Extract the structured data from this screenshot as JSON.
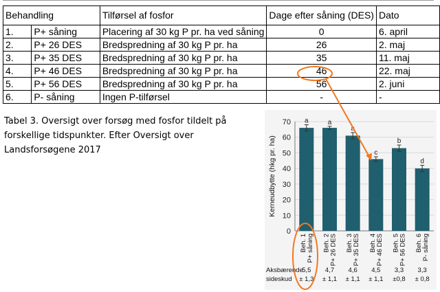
{
  "table": {
    "headers": [
      "Behandling",
      "",
      "Tilførsel af fosfor",
      "Dage efter såning (DES)",
      "Dato"
    ],
    "rows": [
      [
        "1.",
        "P+ såning",
        "Placering af 30 kg P pr. ha ved såning",
        "0",
        "6. april"
      ],
      [
        "2.",
        "P+ 26 DES",
        "Bredspredning af 30 kg P pr. ha",
        "26",
        "2. maj"
      ],
      [
        "3.",
        "P+ 35 DES",
        "Bredspredning af 30 kg P pr. ha",
        "35",
        "11. maj"
      ],
      [
        "4.",
        "P+ 46 DES",
        "Bredspredning af 30 kg P pr. ha",
        "46",
        "22. maj"
      ],
      [
        "5.",
        "P+ 56 DES",
        "Bredspredning af 30 kg P pr. ha",
        "56",
        "2. juni"
      ],
      [
        "6.",
        "P- såning",
        "Ingen P-tilførsel",
        "-",
        "-"
      ]
    ]
  },
  "caption": "Tabel 3. Oversigt over forsøg med fosfor tildelt på forskellige tidspunkter. Efter Oversigt over Landsforsøgene 2017",
  "colors": {
    "bar": "#1f5f6e",
    "highlight": "#f07820",
    "grid": "#d8d8d8",
    "chart_bg": "#f4f4f4"
  },
  "chart_data": {
    "type": "bar",
    "ylabel": "Kerneudbytte (hkg pr. ha)",
    "ylim": [
      0,
      70
    ],
    "yticks": [
      0,
      10,
      20,
      30,
      40,
      50,
      60,
      70
    ],
    "grid": true,
    "categories": [
      {
        "line1": "Beh. 1",
        "line2": "P+ såning"
      },
      {
        "line1": "Beh. 2",
        "line2": "P+ 26 DES"
      },
      {
        "line1": "Beh. 3",
        "line2": "P+ 35 DES"
      },
      {
        "line1": "Beh. 4",
        "line2": "P+ 46 DES"
      },
      {
        "line1": "Beh. 5",
        "line2": "P+ 56 DES"
      },
      {
        "line1": "Beh. 6",
        "line2": "P- såning"
      }
    ],
    "values": [
      66,
      66,
      61,
      46,
      53,
      40
    ],
    "errors": [
      2,
      1,
      2,
      1.5,
      2,
      2
    ],
    "letters": [
      "a",
      "a",
      "a",
      "c",
      "b",
      "d"
    ],
    "side_shoots_label": [
      "Aksbærende",
      "sideskud"
    ],
    "side_shoots": [
      {
        "mean": "5,5",
        "sd": "± 1,3"
      },
      {
        "mean": "4,7",
        "sd": "± 1,1"
      },
      {
        "mean": "4,6",
        "sd": "± 1,1"
      },
      {
        "mean": "4,5",
        "sd": "± 1,1"
      },
      {
        "mean": "3,3",
        "sd": "±0,8"
      },
      {
        "mean": "3,3",
        "sd": "± 0,8"
      }
    ]
  }
}
